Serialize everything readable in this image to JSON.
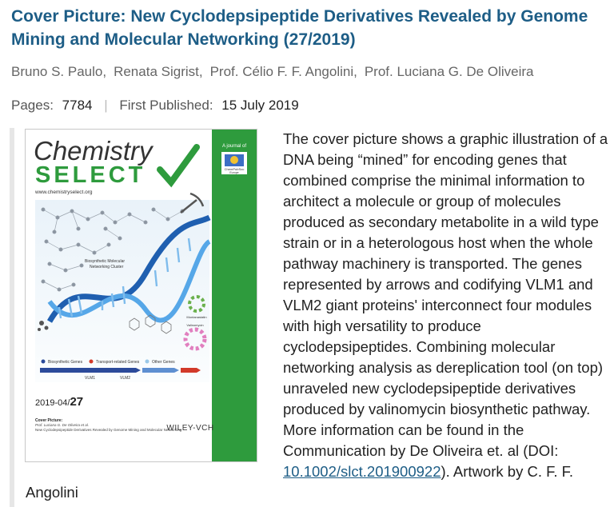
{
  "article": {
    "title": "Cover Picture: New Cyclodepsipeptide Derivatives Revealed by Genome Mining and Molecular Networking (27/2019)",
    "authors": [
      "Bruno S. Paulo,",
      "Renata Sigrist,",
      "Prof. Célio F. F. Angolini,",
      "Prof. Luciana G. De Oliveira"
    ],
    "pages_label": "Pages:",
    "pages_value": "7784",
    "separator": "|",
    "published_label": "First Published:",
    "published_value": "15 July 2019"
  },
  "cover": {
    "journal_line1": "Chemistry",
    "journal_line2": "SELECT",
    "website": "www.chemistryselect.org",
    "a_journal_of": "A journal of",
    "chempubsoc_line1": "ChemPubSoc",
    "chempubsoc_line2": "Europe",
    "issue_prefix": "2019-04/",
    "issue_number": "27",
    "cover_picture_label": "Cover Picture:",
    "cover_authors": "Prof. Luciana G. De Oliveira et al.",
    "cover_title": "New Cyclodepsipeptide Derivatives Revealed by Genome Mining and Molecular Networking",
    "publisher": "WILEY-VCH",
    "network_label_line1": "Biosynthetic Molecular",
    "network_label_line2": "Networking Cluster",
    "legend_biosynthetic": "Biosynthetic Genes",
    "legend_transport": "Transport-related Genes",
    "legend_other": "Other Genes",
    "gene_vlm1": "VLM1",
    "gene_vlm2": "VLM2",
    "valinomycin_label": "Valinomycin",
    "montanastatin_label": "Montanastatin"
  },
  "description": {
    "text": "The cover picture shows a graphic illustration of a DNA being “mined” for encoding genes that combined comprise the minimal information to architect a molecule or group of molecules produced as secondary metabolite in a wild type strain or in a heterologous host when the whole pathway machinery is transported. The genes represented by arrows and codifying VLM1 and VLM2 giant proteins' interconnect four modules with high versatility to produce cyclodepsipeptides. Combining molecular networking analysis as dereplication tool (on top) unraveled new cyclodepsipeptide derivatives produced by valinomycin biosynthetic pathway. More information can be found in the Communication by De Oliveira et. al (DOI: ",
    "doi_link": "10.1002/slct.201900922",
    "text_after": "). Artwork by C. F. F. Angolini"
  },
  "colors": {
    "title": "#1d5d86",
    "journal_green": "#2e9b3d",
    "helix_blue": "#1f5fb0",
    "helix_light": "#56a7e8"
  }
}
